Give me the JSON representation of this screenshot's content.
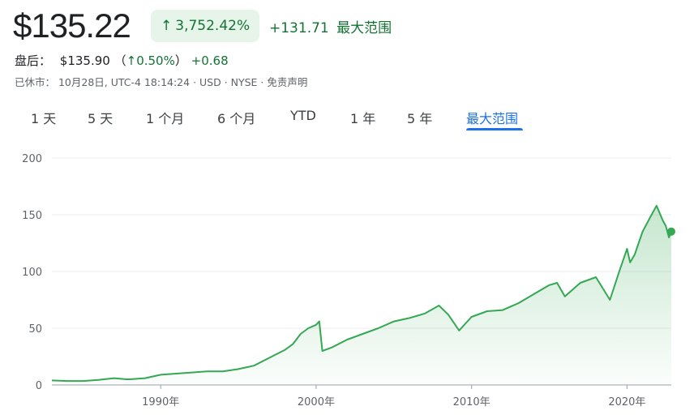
{
  "quote": {
    "price": "$135.22",
    "pct_change": "3,752.42%",
    "abs_change": "+131.71",
    "period_label": "最大范围",
    "after_hours_label": "盘后：",
    "after_hours_price": "$135.90",
    "after_hours_open_paren": "（",
    "after_hours_pct": "0.50%",
    "after_hours_close_paren": "）",
    "after_hours_change": "+0.68",
    "meta": "已休市： 10月28日, UTC-4 18:14:24 · USD · NYSE · 免责声明"
  },
  "tabs": [
    {
      "label": "1 天"
    },
    {
      "label": "5 天"
    },
    {
      "label": "1 个月"
    },
    {
      "label": "6 个月"
    },
    {
      "label": "YTD"
    },
    {
      "label": "1 年"
    },
    {
      "label": "5 年"
    },
    {
      "label": "最大范围",
      "active": true
    }
  ],
  "colors": {
    "up": "#137333",
    "line": "#34a853",
    "accent": "#1a73e8"
  },
  "chart_data": {
    "type": "area",
    "title": "",
    "xlabel": "",
    "ylabel": "",
    "ylim": [
      0,
      200
    ],
    "yticks": [
      0,
      50,
      100,
      150,
      200
    ],
    "xlim": [
      1983,
      2022.85
    ],
    "xticks": [
      {
        "value": 1990,
        "label": "1990年"
      },
      {
        "value": 2000,
        "label": "2000年"
      },
      {
        "value": 2010,
        "label": "2010年"
      },
      {
        "value": 2020,
        "label": "2020年"
      }
    ],
    "grid": true,
    "series": [
      {
        "x": [
          1983.0,
          1984.0,
          1985.0,
          1986.0,
          1987.0,
          1987.8,
          1988.0,
          1989.0,
          1990.0,
          1991.0,
          1992.0,
          1993.0,
          1994.0,
          1995.0,
          1996.0,
          1997.0,
          1998.0,
          1998.5,
          1999.0,
          1999.5,
          2000.0,
          2000.2,
          2000.4,
          2001.0,
          2002.0,
          2003.0,
          2004.0,
          2005.0,
          2006.0,
          2007.0,
          2007.9,
          2008.5,
          2009.2,
          2010.0,
          2011.0,
          2012.0,
          2013.0,
          2014.0,
          2015.0,
          2015.5,
          2016.0,
          2017.0,
          2018.0,
          2018.9,
          2019.5,
          2020.0,
          2020.2,
          2020.5,
          2021.0,
          2021.5,
          2021.9,
          2022.3,
          2022.5,
          2022.7,
          2022.85
        ],
        "y": [
          4,
          3.5,
          3.5,
          4.5,
          6,
          5,
          5,
          6,
          9,
          10,
          11,
          12,
          12,
          14,
          17,
          24,
          31,
          36,
          45,
          50,
          53,
          56,
          30,
          33,
          40,
          45,
          50,
          56,
          59,
          63,
          70,
          62,
          48,
          60,
          65,
          66,
          72,
          80,
          88,
          90,
          78,
          90,
          95,
          75,
          100,
          120,
          108,
          115,
          135,
          148,
          158,
          145,
          140,
          130,
          135.22
        ]
      }
    ]
  }
}
